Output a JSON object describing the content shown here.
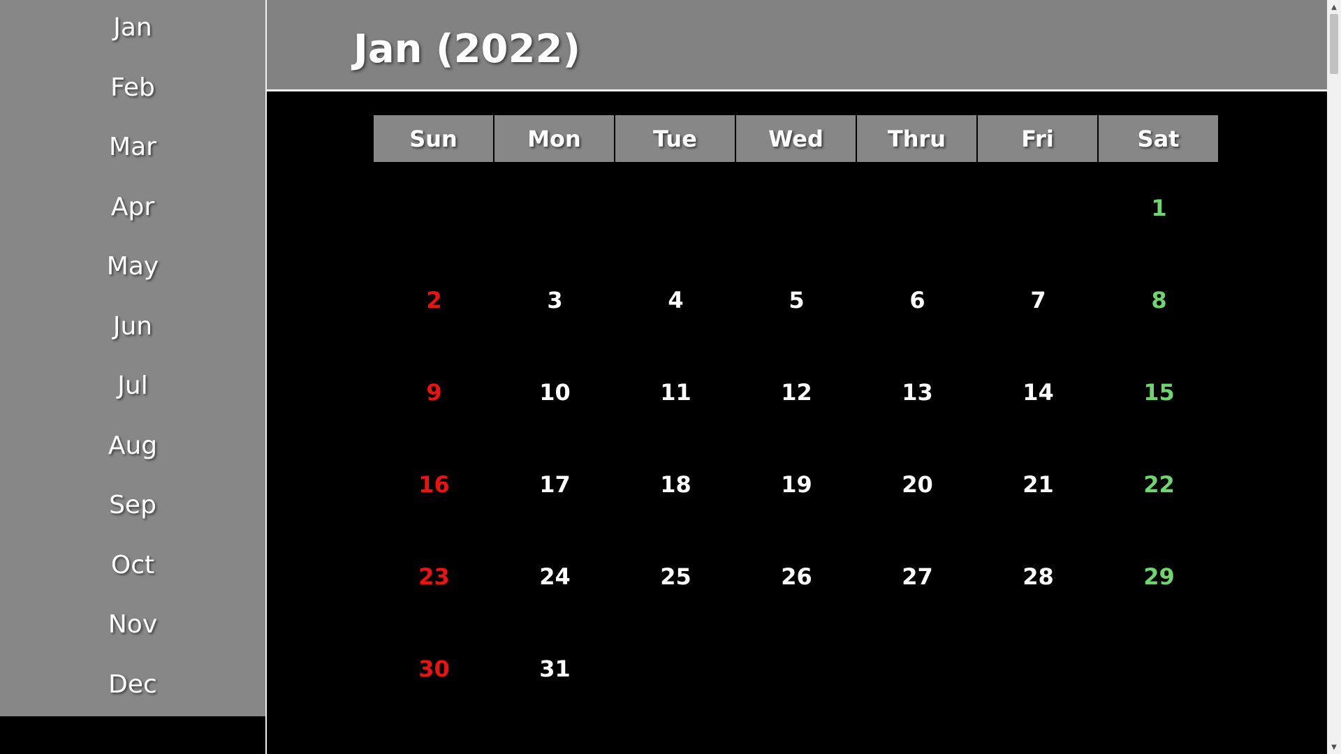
{
  "sidebar": {
    "months": [
      "Jan",
      "Feb",
      "Mar",
      "Apr",
      "May",
      "Jun",
      "Jul",
      "Aug",
      "Sep",
      "Oct",
      "Nov",
      "Dec"
    ]
  },
  "header": {
    "title": "Jan (2022)"
  },
  "calendar": {
    "weekdays": [
      "Sun",
      "Mon",
      "Tue",
      "Wed",
      "Thru",
      "Fri",
      "Sat"
    ],
    "first_weekday_index": 6,
    "days": [
      "1",
      "2",
      "3",
      "4",
      "5",
      "6",
      "7",
      "8",
      "9",
      "10",
      "11",
      "12",
      "13",
      "14",
      "15",
      "16",
      "17",
      "18",
      "19",
      "20",
      "21",
      "22",
      "23",
      "24",
      "25",
      "26",
      "27",
      "28",
      "29",
      "30",
      "31"
    ],
    "colors": {
      "sunday": "#ee1111",
      "saturday": "#6fd66f",
      "weekday": "#ffffff"
    }
  },
  "scrollbar": {
    "up_icon": "chevron-up-icon",
    "down_icon": "chevron-down-icon"
  }
}
